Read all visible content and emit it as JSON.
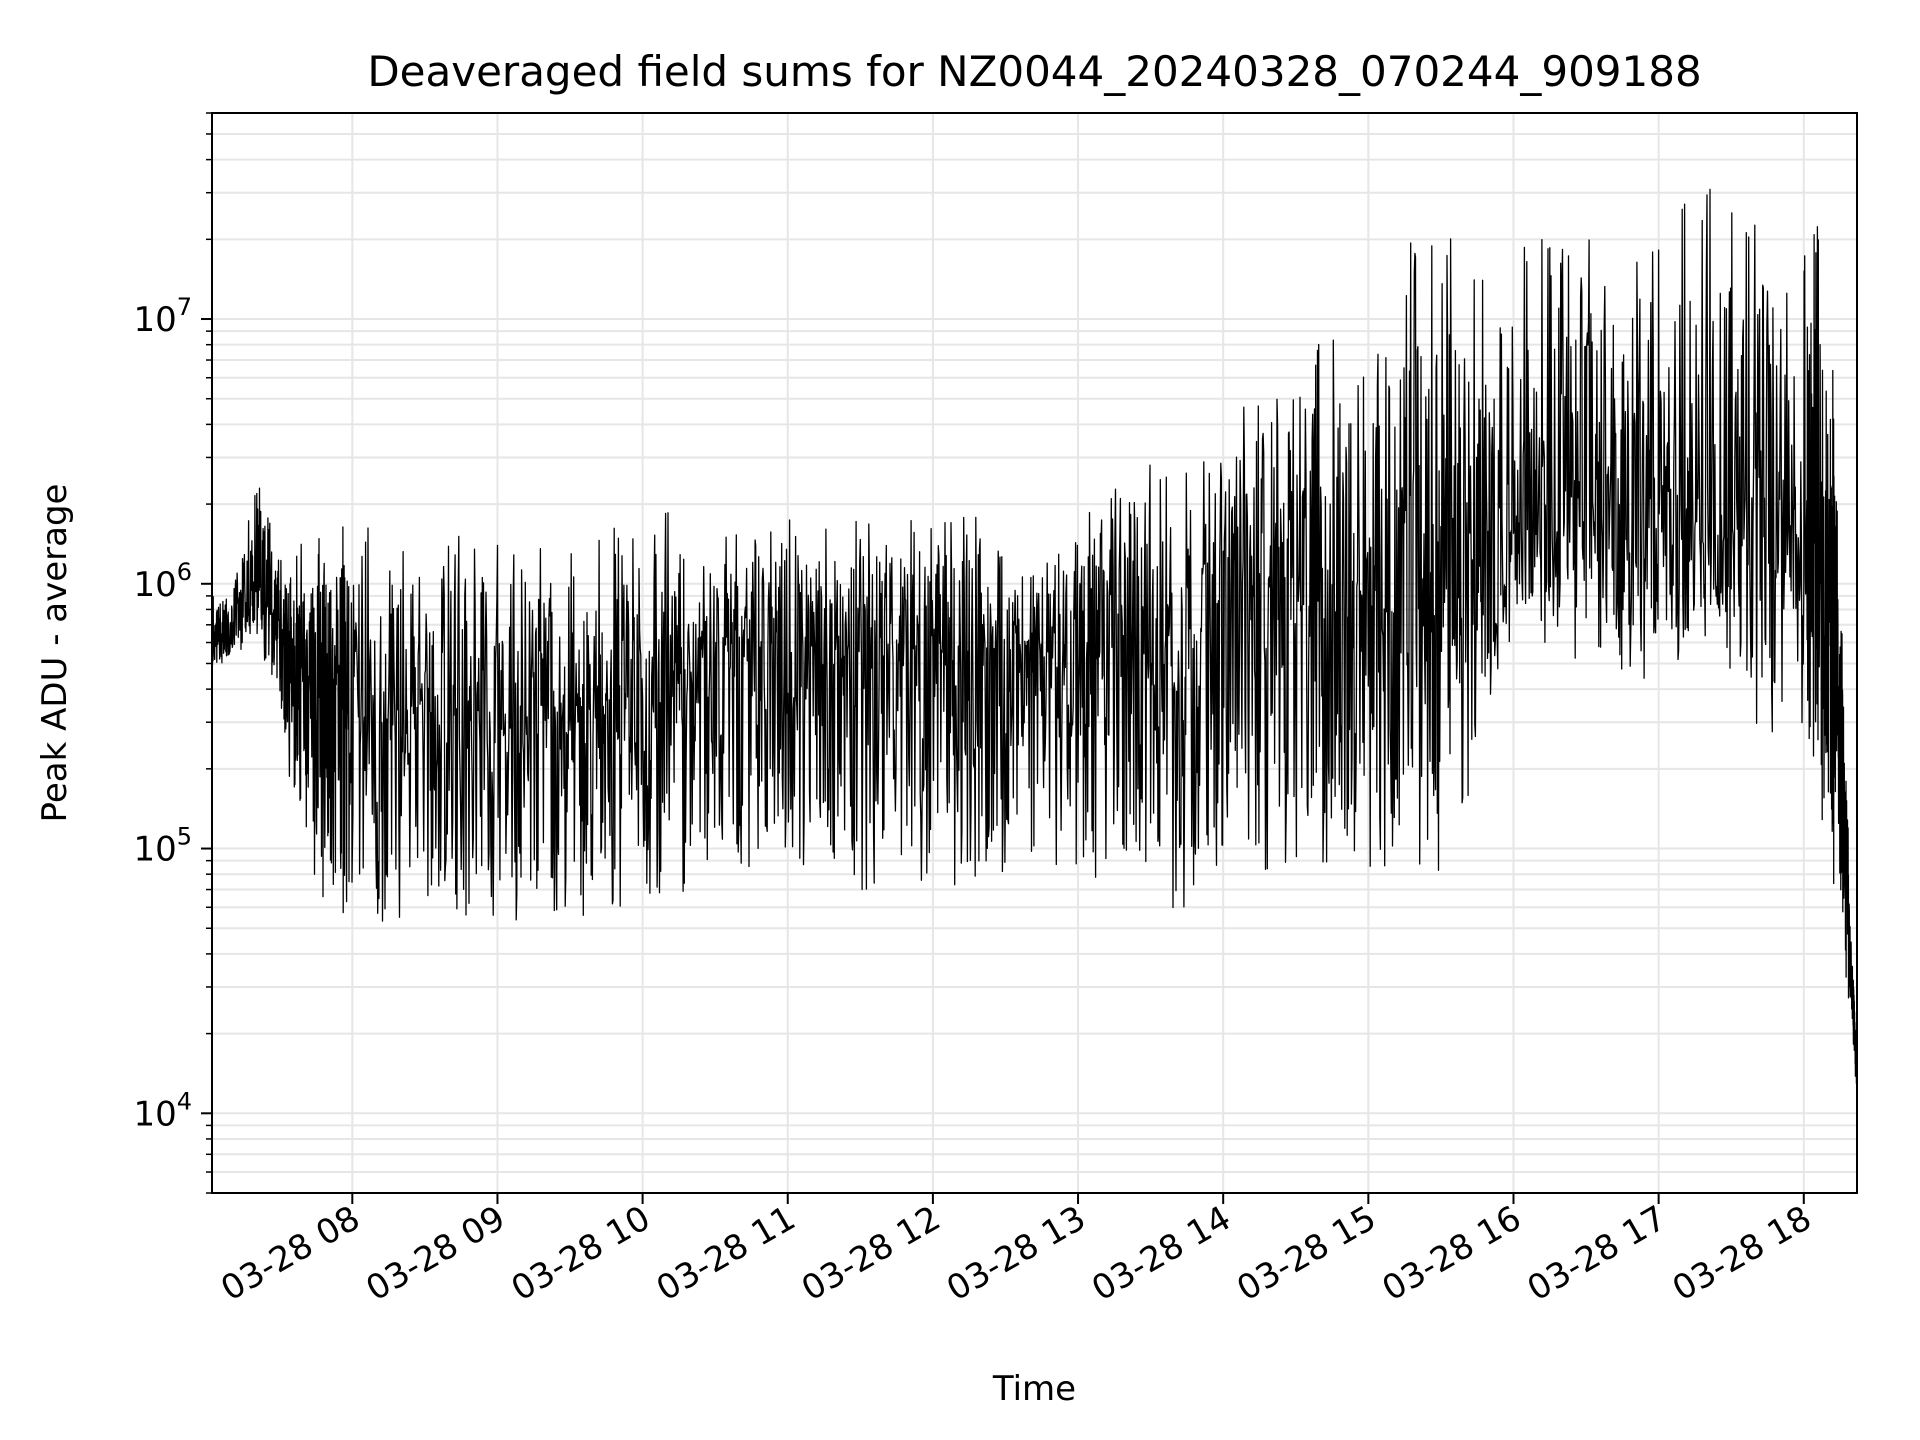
{
  "chart_data": {
    "type": "line",
    "title": "Deaveraged field sums for NZ0044_20240328_070244_909188",
    "xlabel": "Time",
    "ylabel": "Peak ADU - average",
    "y_scale": "log",
    "ylim": [
      5000,
      60000000
    ],
    "xlim": [
      "2024-03-28 07:02",
      "2024-03-28 18:22"
    ],
    "grid": true,
    "line_color": "#000000",
    "grid_color": "#e6e6e6",
    "x_ticks": [
      {
        "value": "2024-03-28 08:00",
        "label": "03-28 08"
      },
      {
        "value": "2024-03-28 09:00",
        "label": "03-28 09"
      },
      {
        "value": "2024-03-28 10:00",
        "label": "03-28 10"
      },
      {
        "value": "2024-03-28 11:00",
        "label": "03-28 11"
      },
      {
        "value": "2024-03-28 12:00",
        "label": "03-28 12"
      },
      {
        "value": "2024-03-28 13:00",
        "label": "03-28 13"
      },
      {
        "value": "2024-03-28 14:00",
        "label": "03-28 14"
      },
      {
        "value": "2024-03-28 15:00",
        "label": "03-28 15"
      },
      {
        "value": "2024-03-28 16:00",
        "label": "03-28 16"
      },
      {
        "value": "2024-03-28 17:00",
        "label": "03-28 17"
      },
      {
        "value": "2024-03-28 18:00",
        "label": "03-28 18"
      }
    ],
    "y_ticks": [
      {
        "value": 10000,
        "base": "10",
        "exp": "4"
      },
      {
        "value": 100000,
        "base": "10",
        "exp": "5"
      },
      {
        "value": 1000000,
        "base": "10",
        "exp": "6"
      },
      {
        "value": 10000000,
        "base": "10",
        "exp": "7"
      }
    ],
    "series": [
      {
        "x": [
          "2024-03-28 07:02",
          "2024-03-28 07:10",
          "2024-03-28 07:20",
          "2024-03-28 07:30",
          "2024-03-28 07:40",
          "2024-03-28 07:50",
          "2024-03-28 08:00",
          "2024-03-28 08:20",
          "2024-03-28 08:40",
          "2024-03-28 09:00",
          "2024-03-28 09:20",
          "2024-03-28 09:40",
          "2024-03-28 10:00",
          "2024-03-28 10:20",
          "2024-03-28 10:40",
          "2024-03-28 11:00",
          "2024-03-28 11:20",
          "2024-03-28 11:40",
          "2024-03-28 12:00",
          "2024-03-28 12:20",
          "2024-03-28 12:40",
          "2024-03-28 13:00",
          "2024-03-28 13:20",
          "2024-03-28 13:40",
          "2024-03-28 14:00",
          "2024-03-28 14:20",
          "2024-03-28 14:40",
          "2024-03-28 15:00",
          "2024-03-28 15:20",
          "2024-03-28 15:40",
          "2024-03-28 16:00",
          "2024-03-28 16:20",
          "2024-03-28 16:40",
          "2024-03-28 17:00",
          "2024-03-28 17:20",
          "2024-03-28 17:40",
          "2024-03-28 18:00",
          "2024-03-28 18:10",
          "2024-03-28 18:15",
          "2024-03-28 18:20",
          "2024-03-28 18:22"
        ],
        "center": [
          600000,
          650000,
          1000000,
          700000,
          450000,
          400000,
          350000,
          320000,
          300000,
          300000,
          300000,
          350000,
          400000,
          450000,
          500000,
          550000,
          550000,
          560000,
          560000,
          570000,
          560000,
          550000,
          500000,
          400000,
          900000,
          800000,
          900000,
          800000,
          800000,
          700000,
          1700000,
          1800000,
          1800000,
          1900000,
          1700000,
          1600000,
          1500000,
          800000,
          200000,
          30000,
          15000
        ],
        "low": [
          450000,
          500000,
          600000,
          300000,
          90000,
          60000,
          50000,
          55000,
          55000,
          50000,
          55000,
          55000,
          60000,
          70000,
          75000,
          80000,
          70000,
          70000,
          70000,
          75000,
          75000,
          80000,
          65000,
          55000,
          80000,
          80000,
          85000,
          85000,
          70000,
          100000,
          700000,
          500000,
          400000,
          400000,
          600000,
          300000,
          200000,
          100000,
          50000,
          20000,
          10000
        ],
        "high": [
          900000,
          1000000,
          3000000,
          1500000,
          1400000,
          1600000,
          1700000,
          1600000,
          1600000,
          1600000,
          1500000,
          1500000,
          2300000,
          1800000,
          1700000,
          1800000,
          1700000,
          1800000,
          1900000,
          1800000,
          1600000,
          1500000,
          4000000,
          2500000,
          5000000,
          5000000,
          9000000,
          8000000,
          22000000,
          20000000,
          20000000,
          21000000,
          22000000,
          20000000,
          40000000,
          28000000,
          26000000,
          22000000,
          1500000,
          40000,
          20000
        ],
        "samples_per_segment": 80,
        "seed": 44
      }
    ]
  }
}
